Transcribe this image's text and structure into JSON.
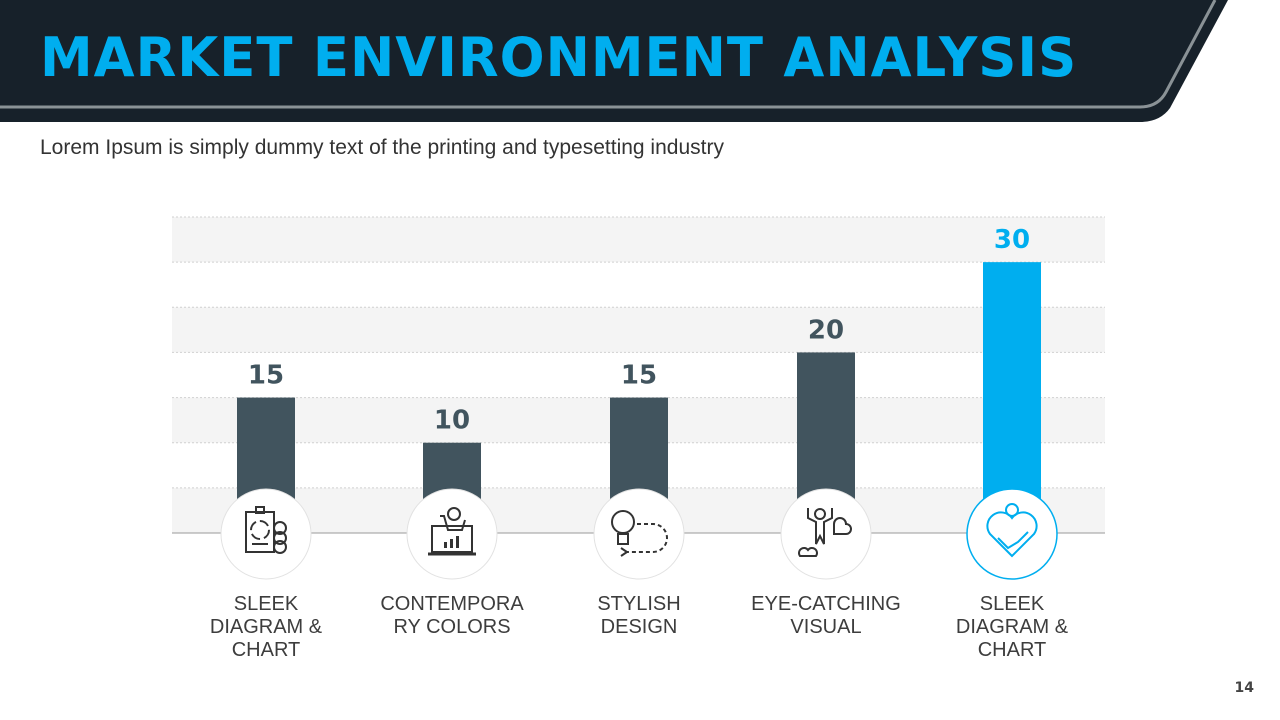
{
  "header": {
    "title": "MARKET ENVIRONMENT ANALYSIS",
    "subtitle": "Lorem Ipsum is simply dummy text of the printing and typesetting industry"
  },
  "page_number": "14",
  "colors": {
    "bar": "#41545E",
    "highlight": "#00AEEF",
    "header_bg": "#17212A"
  },
  "chart_data": {
    "type": "bar",
    "categories": [
      "SLEEK DIAGRAM & CHART",
      "CONTEMPORARY COLORS",
      "STYLISH DESIGN",
      "EYE-CATCHING VISUAL",
      "SLEEK DIAGRAM & CHART"
    ],
    "category_lines": [
      [
        "SLEEK",
        "DIAGRAM &",
        "CHART"
      ],
      [
        "CONTEMPORA",
        "RY COLORS"
      ],
      [
        "STYLISH",
        "DESIGN"
      ],
      [
        "EYE-CATCHING",
        "VISUAL"
      ],
      [
        "SLEEK",
        "DIAGRAM &",
        "CHART"
      ]
    ],
    "icons": [
      "clipboard-cycle-money-icon",
      "cart-laptop-chart-icon",
      "bulb-arrow-icon",
      "superhero-clouds-icon",
      "handshake-heart-money-icon"
    ],
    "values": [
      15,
      10,
      15,
      20,
      30
    ],
    "labels": [
      "15",
      "10",
      "15",
      "20",
      "30"
    ],
    "highlight_index": 4,
    "ylim": [
      0,
      35
    ],
    "grid": true,
    "title": "",
    "xlabel": "",
    "ylabel": ""
  }
}
